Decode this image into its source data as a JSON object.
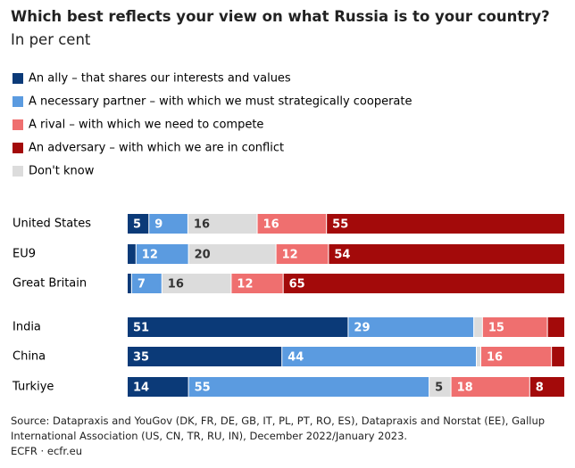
{
  "chart_data": {
    "type": "stacked-bar",
    "title": "Which best reflects your view on what Russia is to your country?",
    "subtitle": "In per cent",
    "categories": [
      "United States",
      "EU9",
      "Great Britain",
      "India",
      "China",
      "Turkiye"
    ],
    "series": [
      {
        "name": "An ally – that shares our interests and values",
        "color": "#0b3a78",
        "values": [
          5,
          2,
          1,
          51,
          35,
          14
        ]
      },
      {
        "name": "A necessary partner – with which we must strategically cooperate",
        "color": "#5b9be0",
        "values": [
          9,
          12,
          7,
          29,
          44,
          55
        ]
      },
      {
        "name": "A rival – with which we need to compete",
        "color": "#ef6f6f",
        "values": [
          16,
          12,
          12,
          15,
          16,
          18
        ]
      },
      {
        "name": "An adversary – with which we are in conflict",
        "color": "#a30a0a",
        "values": [
          55,
          54,
          65,
          4,
          3,
          8
        ]
      },
      {
        "name": "Don't know",
        "color": "#dcdcdc",
        "values": [
          16,
          20,
          16,
          2,
          1,
          5
        ]
      }
    ],
    "source": "Source: Datapraxis and YouGov (DK, FR, DE, GB, IT, PL, PT, RO, ES), Datapraxis and Norstat (EE), Gallup International Association (US, CN, TR, RU, IN), December 2022/January 2023.",
    "credit": "ECFR · ecfr.eu"
  }
}
